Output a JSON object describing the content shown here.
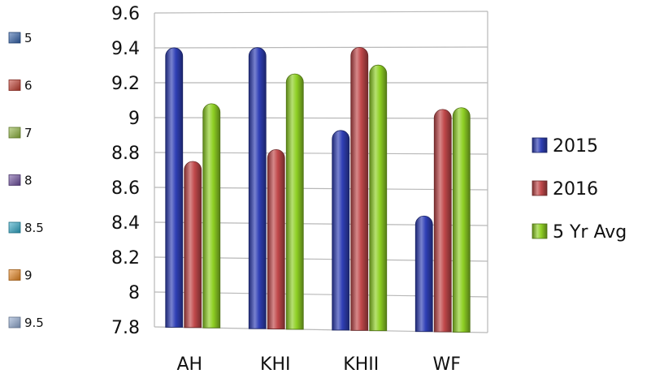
{
  "chart_data": {
    "type": "bar",
    "categories": [
      "AH",
      "KHI",
      "KHII",
      "WF"
    ],
    "series": [
      {
        "name": "2015",
        "values": [
          9.4,
          9.4,
          8.93,
          8.45
        ]
      },
      {
        "name": "2016",
        "values": [
          8.75,
          8.82,
          9.4,
          9.05
        ]
      },
      {
        "name": "5 Yr Avg",
        "values": [
          9.08,
          9.25,
          9.3,
          9.06
        ]
      }
    ],
    "ylim": [
      7.8,
      9.6
    ],
    "yticks": [
      "7.8",
      "8",
      "8.2",
      "8.4",
      "8.6",
      "8.8",
      "9",
      "9.2",
      "9.4",
      "9.6"
    ],
    "grid": true,
    "legend_placement": "right",
    "colors": {
      "2015": "#2f3fb5",
      "2016": "#c0484a",
      "5 Yr Avg": "#8fd024"
    },
    "secondary_legend": [
      {
        "label": "5",
        "color": "#2e5fa8"
      },
      {
        "label": "6",
        "color": "#c0392b"
      },
      {
        "label": "7",
        "color": "#8cb33a"
      },
      {
        "label": "8",
        "color": "#6a4a9c"
      },
      {
        "label": "8.5",
        "color": "#2aa5c5"
      },
      {
        "label": "9",
        "color": "#e8841c"
      },
      {
        "label": "9.5",
        "color": "#8fa8d0"
      }
    ]
  }
}
